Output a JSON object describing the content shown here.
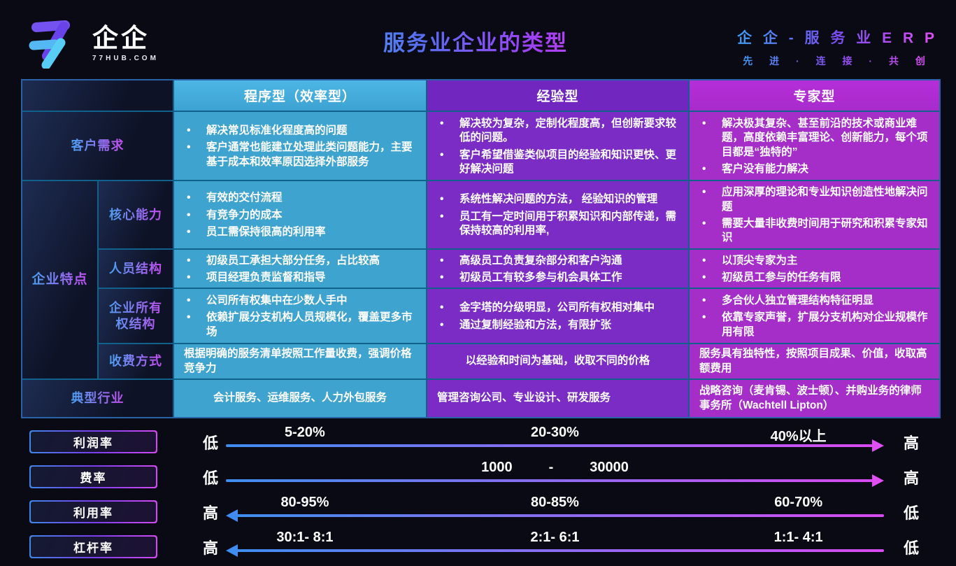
{
  "brand": {
    "logo_text": "企企",
    "logo_sub": "77HUB.COM"
  },
  "header": {
    "title": "服务业企业的类型",
    "right_line1": "企 企 - 服 务 业 E R P",
    "right_line2": "先 进 · 连 接 · 共 创"
  },
  "colors": {
    "column_procedural": "#3ea4cf",
    "column_experience": "#7b2cc4",
    "column_expert": "#a52ec9",
    "accent_gradient_start": "#3f9df2",
    "accent_gradient_end": "#e24ef2"
  },
  "table": {
    "headers": [
      "程序型（效率型）",
      "经验型",
      "专家型"
    ],
    "group_label": "企业特点",
    "row_customer": {
      "label": "客户需求",
      "c1": [
        "解决常见标准化程度高的问题",
        "客户通常也能建立处理此类问题能力，主要基于成本和效率原因选择外部服务"
      ],
      "c2": [
        "解决较为复杂，定制化程度高，但创新要求较低的问题。",
        "客户希望借鉴类似项目的经验和知识更快、更好解决问题"
      ],
      "c3": [
        "解决极其复杂、甚至前沿的技术或商业难题，高度依赖丰富理论、创新能力，每个项目都是“独特的”",
        "客户没有能力解决"
      ]
    },
    "row_core": {
      "label": "核心能力",
      "c1": [
        "有效的交付流程",
        "有竞争力的成本",
        "员工需保持很高的利用率"
      ],
      "c2": [
        "系统性解决问题的方法， 经验知识的管理",
        "员工有一定时间用于积累知识和内部传递，需保持较高的利用率,"
      ],
      "c3": [
        "应用深厚的理论和专业知识创造性地解决问题",
        "需要大量非收费时间用于研究和积累专家知识"
      ]
    },
    "row_personnel": {
      "label": "人员结构",
      "c1": [
        "初级员工承担大部分任务，占比较高",
        "项目经理负责监督和指导"
      ],
      "c2": [
        "高级员工负责复杂部分和客户沟通",
        "初级员工有较多参与机会具体工作"
      ],
      "c3": [
        "以顶尖专家为主",
        "初级员工参与的任务有限"
      ]
    },
    "row_ownership": {
      "label": "企业所有权结构",
      "c1": [
        "公司所有权集中在少数人手中",
        "依赖扩展分支机构人员规模化，覆盖更多市场"
      ],
      "c2": [
        "金字塔的分级明显，公司所有权相对集中",
        "通过复制经验和方法，有限扩张"
      ],
      "c3": [
        "多合伙人独立管理结构特征明显",
        "依靠专家声誉，扩展分支机构对企业规模作用有限"
      ]
    },
    "row_pricing": {
      "label": "收费方式",
      "c1": "根据明确的服务清单按照工作量收费，强调价格竞争力",
      "c2": "以经验和时间为基础，收取不同的价格",
      "c3": "服务具有独特性，按照项目成果、价值，收取高额费用"
    },
    "row_industry": {
      "label": "典型行业",
      "c1": "会计服务、运维服务、人力外包服务",
      "c2": "管理咨询公司、专业设计、研发服务",
      "c3": "战略咨询（麦肯锡、波士顿）、并购业务的律师事务所（Wachtell Lipton）"
    }
  },
  "scales": [
    {
      "label": "利润率",
      "left": "低",
      "right": "高",
      "direction": "right",
      "values": [
        "5-20%",
        "20-30%",
        "40%以上"
      ]
    },
    {
      "label": "费率",
      "left": "低",
      "right": "高",
      "direction": "right",
      "values": [
        "1000",
        "-",
        "30000"
      ]
    },
    {
      "label": "利用率",
      "left": "高",
      "right": "低",
      "direction": "left",
      "values": [
        "80-95%",
        "80-85%",
        "60-70%"
      ]
    },
    {
      "label": "杠杆率",
      "left": "高",
      "right": "低",
      "direction": "left",
      "values": [
        "30:1- 8:1",
        "2:1- 6:1",
        "1:1- 4:1"
      ]
    }
  ]
}
